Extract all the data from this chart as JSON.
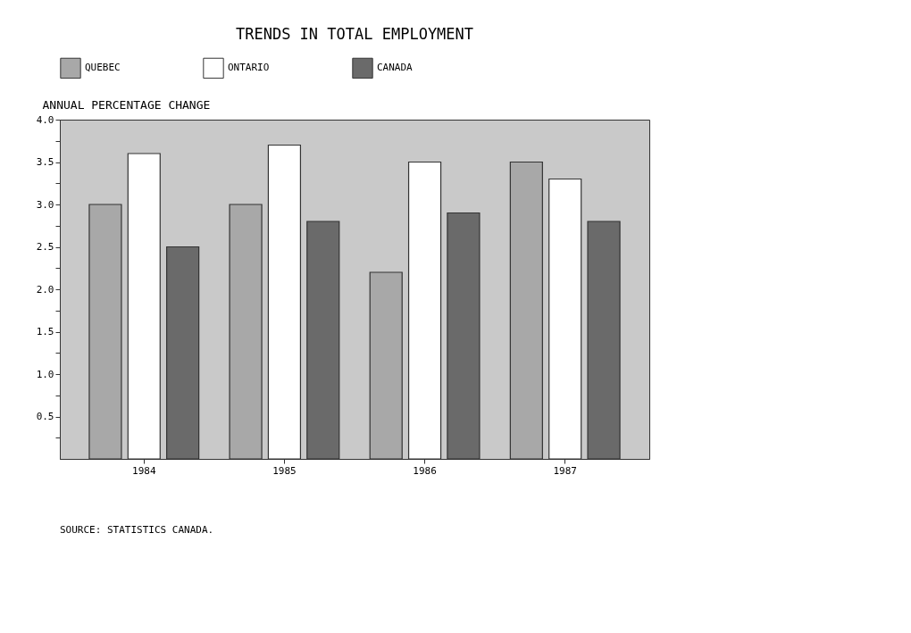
{
  "chart_data": {
    "type": "bar",
    "title": "TRENDS IN TOTAL EMPLOYMENT",
    "ylabel": "ANNUAL PERCENTAGE CHANGE",
    "categories": [
      "1984",
      "1985",
      "1986",
      "1987"
    ],
    "series": [
      {
        "name": "QUEBEC",
        "color": "#a8a8a8",
        "values": [
          3.0,
          3.0,
          2.2,
          3.5
        ]
      },
      {
        "name": "ONTARIO",
        "color": "#ffffff",
        "values": [
          3.6,
          3.7,
          3.5,
          3.3
        ]
      },
      {
        "name": "CANADA",
        "color": "#6a6a6a",
        "values": [
          2.5,
          2.8,
          2.9,
          2.8
        ]
      }
    ],
    "ylim": [
      0,
      4
    ],
    "yticks": [
      {
        "value": 0.25,
        "label": null
      },
      0.5,
      {
        "value": 0.75,
        "label": null
      },
      {
        "value": 1,
        "label": "1.0"
      },
      {
        "value": 1.25,
        "label": null
      },
      1.5,
      {
        "value": 1.75,
        "label": null
      },
      {
        "value": 2,
        "label": "2.0"
      },
      {
        "value": 2.25,
        "label": null
      },
      2.5,
      {
        "value": 2.75,
        "label": null
      },
      {
        "value": 3,
        "label": "3.0"
      },
      {
        "value": 3.25,
        "label": null
      },
      3.5,
      {
        "value": 3.75,
        "label": null
      },
      {
        "value": 4,
        "label": "4.0"
      }
    ],
    "legend": "top",
    "grid": false,
    "annotations": [
      "SOURCE:  STATISTICS CANADA."
    ]
  }
}
